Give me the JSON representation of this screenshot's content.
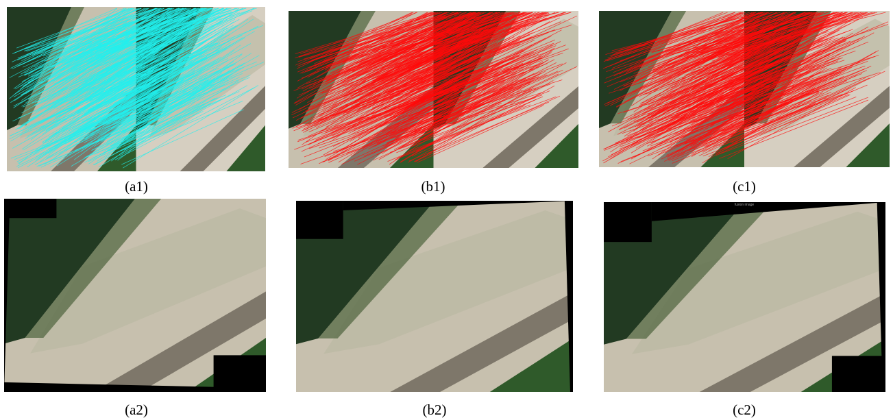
{
  "panels": [
    {
      "caption": "(a1)"
    },
    {
      "caption": "(b1)"
    },
    {
      "caption": "(c1)"
    },
    {
      "caption": "(a2)"
    },
    {
      "caption": "(b2)"
    },
    {
      "caption": "(c2)",
      "inset_text": "fusion image"
    }
  ]
}
